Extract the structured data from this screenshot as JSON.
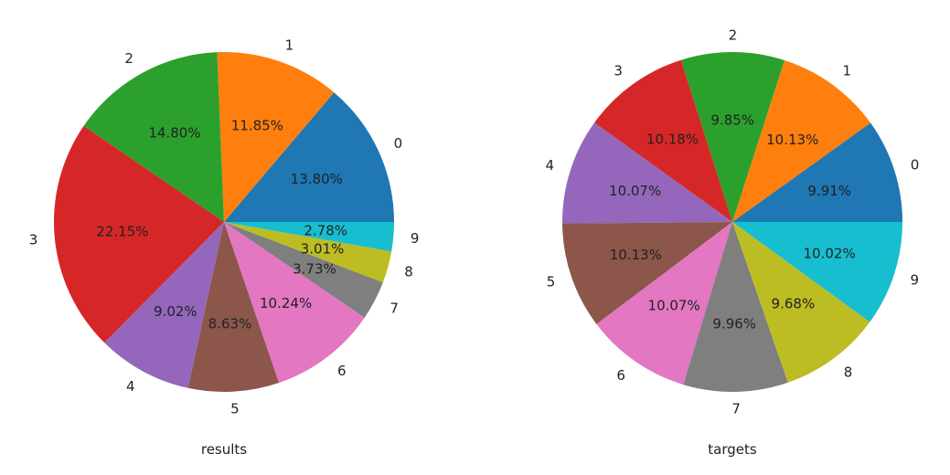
{
  "chart_data": [
    {
      "type": "pie",
      "xlabel": "results",
      "categories": [
        "0",
        "1",
        "2",
        "3",
        "4",
        "5",
        "6",
        "7",
        "8",
        "9"
      ],
      "values": [
        13.8,
        11.85,
        14.8,
        22.15,
        9.02,
        8.63,
        10.24,
        3.73,
        3.01,
        2.78
      ],
      "value_labels": [
        "13.80%",
        "11.85%",
        "14.80%",
        "22.15%",
        "9.02%",
        "8.63%",
        "10.24%",
        "3.73%",
        "3.01%",
        "2.78%"
      ],
      "colors": [
        "#1f77b4",
        "#ff7f0e",
        "#2ca02c",
        "#d62728",
        "#9467bd",
        "#8c564b",
        "#e377c2",
        "#7f7f7f",
        "#bcbd22",
        "#17becf"
      ]
    },
    {
      "type": "pie",
      "xlabel": "targets",
      "categories": [
        "0",
        "1",
        "2",
        "3",
        "4",
        "5",
        "6",
        "7",
        "8",
        "9"
      ],
      "values": [
        9.91,
        10.13,
        9.85,
        10.18,
        10.07,
        10.13,
        10.07,
        9.96,
        9.68,
        10.02
      ],
      "value_labels": [
        "9.91%",
        "10.13%",
        "9.85%",
        "10.18%",
        "10.07%",
        "10.13%",
        "10.07%",
        "9.96%",
        "9.68%",
        "10.02%"
      ],
      "colors": [
        "#1f77b4",
        "#ff7f0e",
        "#2ca02c",
        "#d62728",
        "#9467bd",
        "#8c564b",
        "#e377c2",
        "#7f7f7f",
        "#bcbd22",
        "#17becf"
      ]
    }
  ]
}
